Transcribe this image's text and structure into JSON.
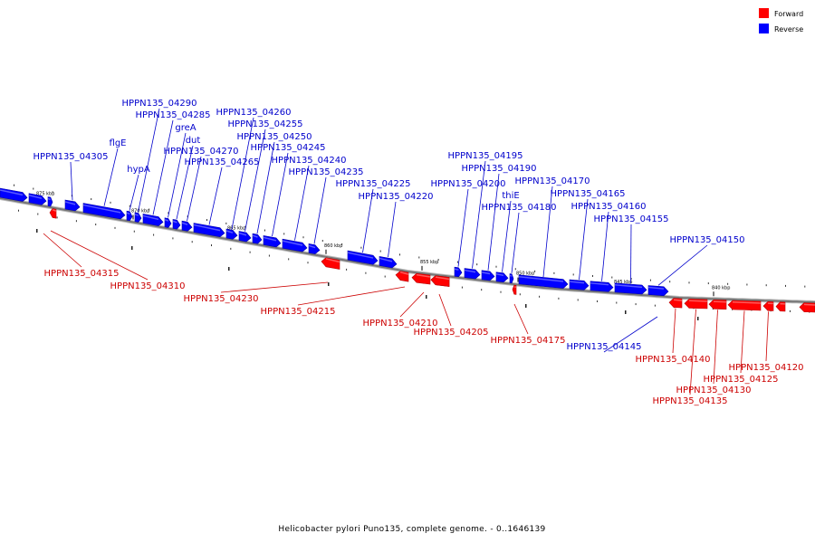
{
  "colors": {
    "forward": "#ff0000",
    "forward_dark": "#b80000",
    "reverse": "#0000ff",
    "reverse_dark": "#0000a8",
    "forward_label": "#cc0000",
    "reverse_label": "#0000cc",
    "backbone": "#777777"
  },
  "legend": {
    "forward": "Forward",
    "reverse": "Reverse"
  },
  "caption": "Helicobacter pylori Puno135, complete genome. - 0..1646139",
  "ticks": [
    {
      "label": "875 kbp",
      "bp": 875000
    },
    {
      "label": "870 kbp",
      "bp": 870000
    },
    {
      "label": "865 kbp",
      "bp": 865000
    },
    {
      "label": "860 kbp",
      "bp": 860000
    },
    {
      "label": "855 kbp",
      "bp": 855000
    },
    {
      "label": "850 kbp",
      "bp": 850000
    },
    {
      "label": "845 kbp",
      "bp": 845000
    },
    {
      "label": "840 kbp",
      "bp": 840000
    }
  ],
  "genes": [
    {
      "id": "g0",
      "strand": "reverse",
      "label": ""
    },
    {
      "id": "g1",
      "strand": "reverse",
      "label": ""
    },
    {
      "id": "g2",
      "strand": "reverse",
      "label": ""
    },
    {
      "id": "HPPN135_04305",
      "strand": "reverse",
      "label": "HPPN135_04305"
    },
    {
      "id": "flgE",
      "strand": "reverse",
      "label": "flgE"
    },
    {
      "id": "hypA",
      "strand": "reverse",
      "label": "hypA"
    },
    {
      "id": "HPPN135_04290",
      "strand": "reverse",
      "label": "HPPN135_04290"
    },
    {
      "id": "HPPN135_04285",
      "strand": "reverse",
      "label": "HPPN135_04285"
    },
    {
      "id": "greA",
      "strand": "reverse",
      "label": "greA"
    },
    {
      "id": "dut",
      "strand": "reverse",
      "label": "dut"
    },
    {
      "id": "HPPN135_04270",
      "strand": "reverse",
      "label": "HPPN135_04270"
    },
    {
      "id": "HPPN135_04265",
      "strand": "reverse",
      "label": "HPPN135_04265"
    },
    {
      "id": "HPPN135_04260",
      "strand": "reverse",
      "label": "HPPN135_04260"
    },
    {
      "id": "HPPN135_04255",
      "strand": "reverse",
      "label": "HPPN135_04255"
    },
    {
      "id": "HPPN135_04250",
      "strand": "reverse",
      "label": "HPPN135_04250"
    },
    {
      "id": "HPPN135_04245",
      "strand": "reverse",
      "label": "HPPN135_04245"
    },
    {
      "id": "HPPN135_04240",
      "strand": "reverse",
      "label": "HPPN135_04240"
    },
    {
      "id": "HPPN135_04235",
      "strand": "reverse",
      "label": "HPPN135_04235"
    },
    {
      "id": "HPPN135_04225",
      "strand": "reverse",
      "label": "HPPN135_04225"
    },
    {
      "id": "HPPN135_04220",
      "strand": "reverse",
      "label": "HPPN135_04220"
    },
    {
      "id": "HPPN135_04200",
      "strand": "reverse",
      "label": "HPPN135_04200"
    },
    {
      "id": "HPPN135_04195",
      "strand": "reverse",
      "label": "HPPN135_04195"
    },
    {
      "id": "HPPN135_04190",
      "strand": "reverse",
      "label": "HPPN135_04190"
    },
    {
      "id": "thiE",
      "strand": "reverse",
      "label": "thiE"
    },
    {
      "id": "HPPN135_04180",
      "strand": "reverse",
      "label": "HPPN135_04180"
    },
    {
      "id": "HPPN135_04170",
      "strand": "reverse",
      "label": "HPPN135_04170"
    },
    {
      "id": "HPPN135_04165",
      "strand": "reverse",
      "label": "HPPN135_04165"
    },
    {
      "id": "HPPN135_04160",
      "strand": "reverse",
      "label": "HPPN135_04160"
    },
    {
      "id": "HPPN135_04155",
      "strand": "reverse",
      "label": "HPPN135_04155"
    },
    {
      "id": "HPPN135_04150",
      "strand": "reverse",
      "label": "HPPN135_04150"
    },
    {
      "id": "HPPN135_04145",
      "strand": "reverse",
      "label": "HPPN135_04145"
    },
    {
      "id": "HPPN135_04315",
      "strand": "forward",
      "label": "HPPN135_04315"
    },
    {
      "id": "HPPN135_04310",
      "strand": "forward",
      "label": "HPPN135_04310"
    },
    {
      "id": "HPPN135_04230",
      "strand": "forward",
      "label": "HPPN135_04230"
    },
    {
      "id": "HPPN135_04215",
      "strand": "forward",
      "label": "HPPN135_04215"
    },
    {
      "id": "HPPN135_04210",
      "strand": "forward",
      "label": "HPPN135_04210"
    },
    {
      "id": "HPPN135_04205",
      "strand": "forward",
      "label": "HPPN135_04205"
    },
    {
      "id": "HPPN135_04175",
      "strand": "forward",
      "label": "HPPN135_04175"
    },
    {
      "id": "HPPN135_04140",
      "strand": "forward",
      "label": "HPPN135_04140"
    },
    {
      "id": "HPPN135_04135",
      "strand": "forward",
      "label": "HPPN135_04135"
    },
    {
      "id": "HPPN135_04130",
      "strand": "forward",
      "label": "HPPN135_04130"
    },
    {
      "id": "HPPN135_04125",
      "strand": "forward",
      "label": "HPPN135_04125"
    },
    {
      "id": "HPPN135_04120",
      "strand": "forward",
      "label": "HPPN135_04120"
    },
    {
      "id": "g_end1",
      "strand": "forward",
      "label": ""
    },
    {
      "id": "g_end2",
      "strand": "forward",
      "label": ""
    }
  ]
}
